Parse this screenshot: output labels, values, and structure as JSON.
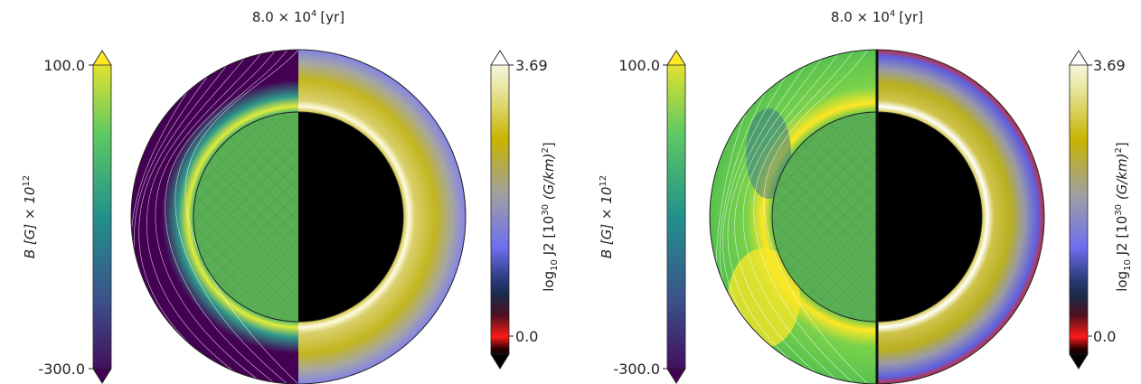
{
  "chart_data": [
    {
      "type": "heatmap",
      "title_base": "8.0 × 10",
      "title_exp": "4",
      "title_unit": "[yr]",
      "left_colorbar": {
        "label_main": "B [G] × 10",
        "label_exp": "12",
        "max_label": "100.0",
        "min_label": "-300.0",
        "range": [
          -300.0,
          100.0
        ],
        "colormap": "viridis",
        "colors": [
          "#440154",
          "#3b528b",
          "#21918c",
          "#5ec962",
          "#fde725"
        ]
      },
      "right_colorbar": {
        "label_pre": "log",
        "label_sub": "10",
        "label_mid": " J2 [10",
        "label_exp": "30",
        "label_post": " (G/km)",
        "label_exp2": "2",
        "label_end": "]",
        "max_label": "3.69",
        "min_label": "0.0",
        "range": [
          0.0,
          3.69
        ],
        "colors": [
          "#000000",
          "#ff1a1a",
          "#1a2a4a",
          "#6e6ef0",
          "#a0a0a0",
          "#c8b400",
          "#ffffff"
        ]
      },
      "left_half_base_color": "#440154",
      "right_half_base_color": "#c2b310"
    },
    {
      "type": "heatmap",
      "title_base": "8.0 × 10",
      "title_exp": "4",
      "title_unit": "[yr]",
      "left_colorbar": {
        "label_main": "B [G] × 10",
        "label_exp": "12",
        "max_label": "100.0",
        "min_label": "-300.0",
        "range": [
          -300.0,
          100.0
        ],
        "colormap": "viridis",
        "colors": [
          "#440154",
          "#3b528b",
          "#21918c",
          "#5ec962",
          "#fde725"
        ]
      },
      "right_colorbar": {
        "label_pre": "log",
        "label_sub": "10",
        "label_mid": " J2 [10",
        "label_exp": "30",
        "label_post": " (G/km)",
        "label_exp2": "2",
        "label_end": "]",
        "max_label": "3.69",
        "min_label": "0.0",
        "range": [
          0.0,
          3.69
        ],
        "colors": [
          "#000000",
          "#ff1a1a",
          "#1a2a4a",
          "#6e6ef0",
          "#a0a0a0",
          "#c8b400",
          "#ffffff"
        ]
      },
      "left_half_base_color": "#57c24f",
      "right_half_base_color": "#7a7af0"
    }
  ]
}
